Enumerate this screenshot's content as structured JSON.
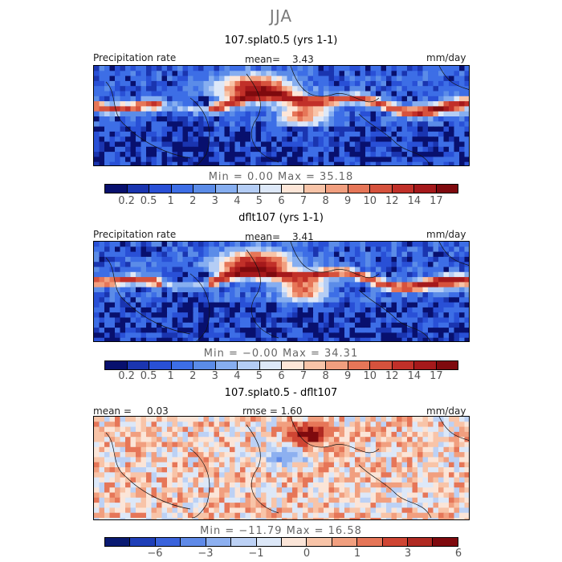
{
  "season": "JJA",
  "colors": {
    "abs_scale": [
      "#08106e",
      "#1a35b0",
      "#2950d6",
      "#3d6ee6",
      "#5b8ce8",
      "#86aef0",
      "#b4cdf5",
      "#dde8f8",
      "#fde6d8",
      "#f8c4a8",
      "#f19f7f",
      "#e67658",
      "#d6523d",
      "#c13029",
      "#a5191b",
      "#7f0a0e"
    ],
    "diff_scale": [
      "#0a1a72",
      "#1f3fb8",
      "#3a63dc",
      "#5f8ae8",
      "#8db0f0",
      "#bcd1f5",
      "#dde8f8",
      "#fbe5d8",
      "#f8c4a8",
      "#f19f7f",
      "#e67658",
      "#cf4533",
      "#b02a22",
      "#7f0a0e"
    ]
  },
  "panels": [
    {
      "title": "107.splat0.5 (yrs 1-1)",
      "left_label": "Precipitation rate",
      "mean_label": "mean=",
      "mean_value": "3.43",
      "units": "mm/day",
      "min_max": "Min =    0.00  Max =   35.18"
    },
    {
      "title": "dflt107 (yrs 1-1)",
      "left_label": "Precipitation rate",
      "mean_label": "mean=",
      "mean_value": "3.41",
      "units": "mm/day",
      "min_max": "Min =   −0.00  Max =   34.31"
    },
    {
      "title": "107.splat0.5 - dflt107",
      "left_label": "mean =",
      "mean_label": "0.03",
      "mean_value": "rmse =     1.60",
      "units": "mm/day",
      "min_max": "Min = −11.79  Max =   16.58"
    }
  ],
  "chart_data": [
    {
      "type": "heatmap",
      "title": "107.splat0.5 (yrs 1-1)",
      "field": "Precipitation rate",
      "units": "mm/day",
      "mean": 3.43,
      "min": 0.0,
      "max": 35.18,
      "contour_levels": [
        0.2,
        0.5,
        1,
        2,
        3,
        4,
        5,
        6,
        7,
        8,
        9,
        10,
        12,
        14,
        17
      ],
      "tick_labels": [
        "0.2",
        "0.5",
        "1",
        "2",
        "3",
        "4",
        "5",
        "6",
        "7",
        "8",
        "9",
        "10",
        "12",
        "14",
        "17"
      ]
    },
    {
      "type": "heatmap",
      "title": "dflt107 (yrs 1-1)",
      "field": "Precipitation rate",
      "units": "mm/day",
      "mean": 3.41,
      "min": -0.0,
      "max": 34.31,
      "contour_levels": [
        0.2,
        0.5,
        1,
        2,
        3,
        4,
        5,
        6,
        7,
        8,
        9,
        10,
        12,
        14,
        17
      ],
      "tick_labels": [
        "0.2",
        "0.5",
        "1",
        "2",
        "3",
        "4",
        "5",
        "6",
        "7",
        "8",
        "9",
        "10",
        "12",
        "14",
        "17"
      ]
    },
    {
      "type": "heatmap",
      "title": "107.splat0.5 - dflt107",
      "units": "mm/day",
      "mean": 0.03,
      "rmse": 1.6,
      "min": -11.79,
      "max": 16.58,
      "contour_levels": [
        -8,
        -6,
        -4,
        -3,
        -2,
        -1,
        -0.5,
        0,
        0.5,
        1,
        2,
        3,
        4,
        6,
        8
      ],
      "tick_labels": [
        "−6",
        "−3",
        "−1",
        "0",
        "1",
        "3",
        "6"
      ],
      "tick_positions": [
        1,
        3,
        5,
        7,
        9,
        11,
        13
      ]
    }
  ]
}
